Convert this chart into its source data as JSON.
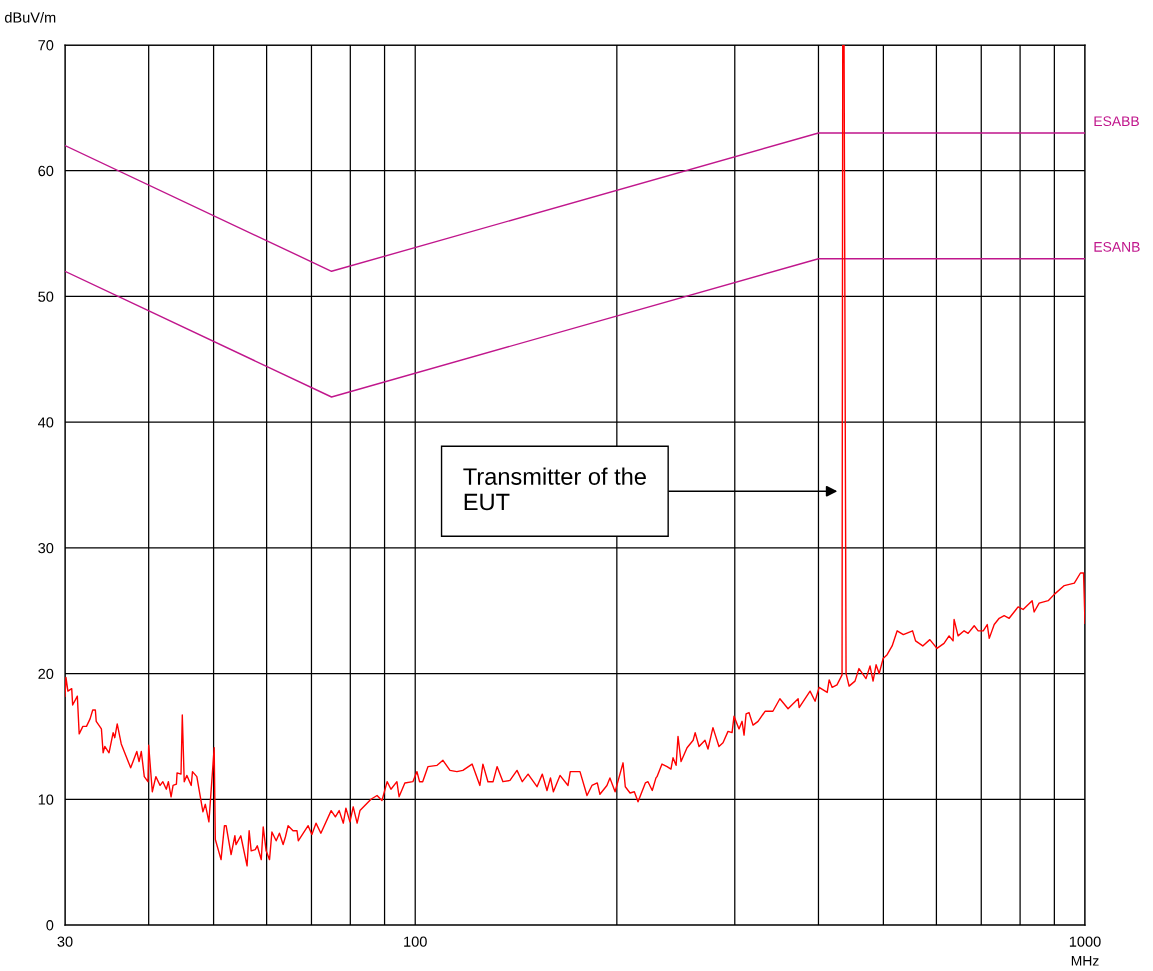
{
  "chart_data": {
    "type": "line",
    "xlabel": "MHz",
    "ylabel": "dBuV/m",
    "log": "x",
    "grid": true,
    "legend": false,
    "marker": "none",
    "line_style": "solid",
    "xlim": [
      30,
      1000
    ],
    "ylim": [
      0,
      70
    ],
    "xticks": [
      30,
      {
        "value": 40,
        "label": null
      },
      {
        "value": 50,
        "label": null
      },
      {
        "value": 60,
        "label": null
      },
      {
        "value": 70,
        "label": null
      },
      {
        "value": 80,
        "label": null
      },
      {
        "value": 90,
        "label": null
      },
      100,
      {
        "value": 200,
        "label": null
      },
      {
        "value": 300,
        "label": null
      },
      {
        "value": 400,
        "label": null
      },
      {
        "value": 500,
        "label": null
      },
      {
        "value": 600,
        "label": null
      },
      {
        "value": 700,
        "label": null
      },
      {
        "value": 800,
        "label": null
      },
      {
        "value": 900,
        "label": null
      },
      1000
    ],
    "yticks": [
      0,
      10,
      20,
      30,
      40,
      50,
      60,
      70
    ],
    "series": [
      {
        "name": "ESABB",
        "color": "#c0168c",
        "x": [
          30,
          75,
          400,
          1000
        ],
        "values": [
          62,
          52,
          63,
          63
        ]
      },
      {
        "name": "ESANB",
        "color": "#c0168c",
        "x": [
          30,
          75,
          400,
          1000
        ],
        "values": [
          52,
          42,
          53,
          53
        ]
      },
      {
        "color": "#ff0000",
        "x": [
          30,
          30.1,
          30.3,
          30.7,
          30.8,
          31.3,
          31.5,
          31.9,
          32.3,
          32.7,
          33.0,
          33.3,
          33.4,
          34.0,
          34.2,
          34.4,
          34.9,
          35.4,
          35.6,
          35.9,
          36.4,
          37.6,
          38.4,
          38.7,
          39.0,
          39.4,
          39.9,
          40.0,
          40.5,
          41.0,
          41.6,
          42.0,
          42.5,
          42.8,
          43.2,
          43.5,
          44.0,
          44.1,
          44.7,
          44.9,
          45.2,
          45.6,
          46.3,
          46.5,
          47.2,
          48.2,
          48.6,
          49.2,
          50.1,
          50.3,
          51.3,
          51.9,
          52.2,
          53.1,
          53.8,
          54.0,
          54.9,
          56.1,
          56.5,
          56.9,
          57.7,
          58.1,
          58.9,
          59.3,
          59.9,
          60.6,
          61.1,
          62.0,
          62.7,
          63.5,
          64.0,
          64.6,
          65.7,
          66.6,
          66.9,
          69.2,
          70.1,
          71.1,
          72.3,
          74.9,
          76.0,
          77.0,
          78.1,
          78.8,
          79.9,
          80.8,
          81.9,
          82.7,
          85.9,
          87.7,
          89.2,
          90.8,
          92.0,
          93.9,
          94.6,
          96.5,
          99.2,
          100.6,
          101.5,
          102.6,
          104.5,
          107.8,
          110.0,
          112.7,
          115.4,
          117.8,
          121.6,
          124.9,
          126.2,
          128.4,
          130.7,
          132.5,
          135.2,
          138.5,
          141.9,
          144.5,
          147.4,
          152.0,
          154.8,
          157.3,
          159.2,
          160.8,
          164.5,
          169.1,
          170.4,
          176.2,
          180.5,
          183.6,
          187.0,
          188.7,
          193.3,
          195.3,
          198.8,
          204.3,
          205.9,
          209.3,
          212.4,
          215.1,
          220.6,
          222.6,
          225.9,
          228.8,
          229.6,
          233.6,
          237.7,
          240.9,
          242.6,
          245.2,
          246.8,
          249.4,
          254.6,
          260.0,
          261.8,
          265.3,
          270.8,
          273.6,
          278.3,
          284.1,
          288.1,
          293.1,
          297.2,
          299.2,
          304.4,
          307.6,
          309.7,
          311.9,
          315.0,
          319.4,
          325.0,
          332.9,
          342.0,
          350.3,
          360.3,
          373.0,
          374.3,
          388.6,
          395.4,
          400.9,
          412.2,
          415.0,
          419.3,
          426.3,
          433.8,
          434.8,
          436.8,
          439.8,
          444.4,
          453.5,
          459.8,
          471.0,
          477.6,
          482.6,
          487.6,
          492.8,
          499.6,
          506.5,
          515.3,
          524.3,
          535.5,
          552.8,
          558.5,
          572.5,
          586.6,
          601.1,
          615.9,
          626.7,
          635.4,
          637.6,
          646.4,
          659.9,
          669.0,
          683.2,
          692.7,
          704.8,
          714.6,
          719.5,
          731.9,
          744.5,
          757.4,
          770.5,
          794.5,
          808.3,
          833.8,
          839.5,
          854.1,
          881.2,
          899.7,
          931.3,
          964.0,
          984.5,
          995.0,
          1000
        ],
        "values": [
          18.2,
          19.7,
          18.6,
          18.8,
          17.5,
          18.2,
          15.2,
          15.8,
          15.8,
          16.4,
          17.1,
          17.1,
          16.2,
          15.6,
          13.7,
          14.2,
          13.7,
          15.3,
          14.9,
          16.0,
          14.4,
          12.5,
          13.8,
          13.0,
          13.8,
          11.8,
          11.4,
          14.3,
          10.6,
          11.8,
          11.1,
          11.4,
          10.8,
          11.4,
          10.2,
          11.1,
          11.2,
          12.1,
          12.0,
          16.7,
          11.4,
          11.9,
          11.1,
          12.2,
          11.8,
          9.0,
          9.6,
          8.2,
          14.1,
          6.8,
          5.2,
          7.9,
          7.9,
          5.6,
          7.1,
          6.4,
          7.1,
          4.7,
          7.5,
          5.9,
          6.0,
          6.3,
          5.2,
          7.8,
          5.9,
          5.2,
          7.4,
          6.7,
          7.3,
          6.4,
          7.0,
          7.9,
          7.5,
          7.5,
          6.7,
          7.9,
          7.2,
          8.1,
          7.3,
          9.1,
          8.6,
          9.1,
          8.1,
          9.3,
          8.2,
          9.4,
          8.1,
          9.1,
          10.0,
          10.3,
          9.9,
          11.4,
          10.8,
          11.4,
          10.2,
          11.3,
          11.4,
          12.2,
          11.4,
          11.4,
          12.6,
          12.7,
          13.1,
          12.3,
          12.2,
          12.3,
          12.8,
          11.1,
          12.8,
          11.4,
          11.4,
          12.6,
          11.4,
          11.5,
          12.3,
          11.4,
          12.0,
          11.0,
          12.0,
          10.7,
          11.7,
          10.6,
          11.9,
          11.1,
          12.2,
          12.2,
          10.3,
          11.1,
          11.3,
          10.4,
          11.1,
          11.7,
          10.6,
          12.9,
          11.0,
          10.5,
          10.6,
          9.8,
          11.3,
          11.4,
          10.7,
          11.7,
          11.8,
          12.8,
          12.6,
          12.4,
          13.3,
          12.7,
          15.0,
          13.0,
          14.1,
          14.7,
          15.3,
          14.2,
          14.7,
          14.0,
          15.7,
          14.2,
          14.5,
          15.4,
          15.3,
          16.6,
          15.6,
          16.2,
          15.1,
          16.8,
          16.9,
          15.9,
          16.2,
          17.0,
          17.0,
          18.0,
          17.2,
          18.0,
          17.3,
          18.6,
          17.8,
          18.9,
          18.5,
          19.5,
          18.9,
          19.1,
          19.9,
          70,
          70,
          20.0,
          19.0,
          19.4,
          20.4,
          19.6,
          20.6,
          19.4,
          20.7,
          20.0,
          21.2,
          21.5,
          22.2,
          23.4,
          23.1,
          23.4,
          22.6,
          22.2,
          22.7,
          22.0,
          22.4,
          23.0,
          22.6,
          24.3,
          23.0,
          23.4,
          23.2,
          23.8,
          23.4,
          23.4,
          23.9,
          22.8,
          23.9,
          24.4,
          24.6,
          24.4,
          25.3,
          25.1,
          25.8,
          24.9,
          25.6,
          25.8,
          26.3,
          27.0,
          27.2,
          28.0,
          28.0,
          24.0
        ]
      }
    ],
    "annotations": [
      {
        "text": "Transmitter of the\nEUT",
        "x": 431,
        "y": 34.5
      }
    ]
  }
}
